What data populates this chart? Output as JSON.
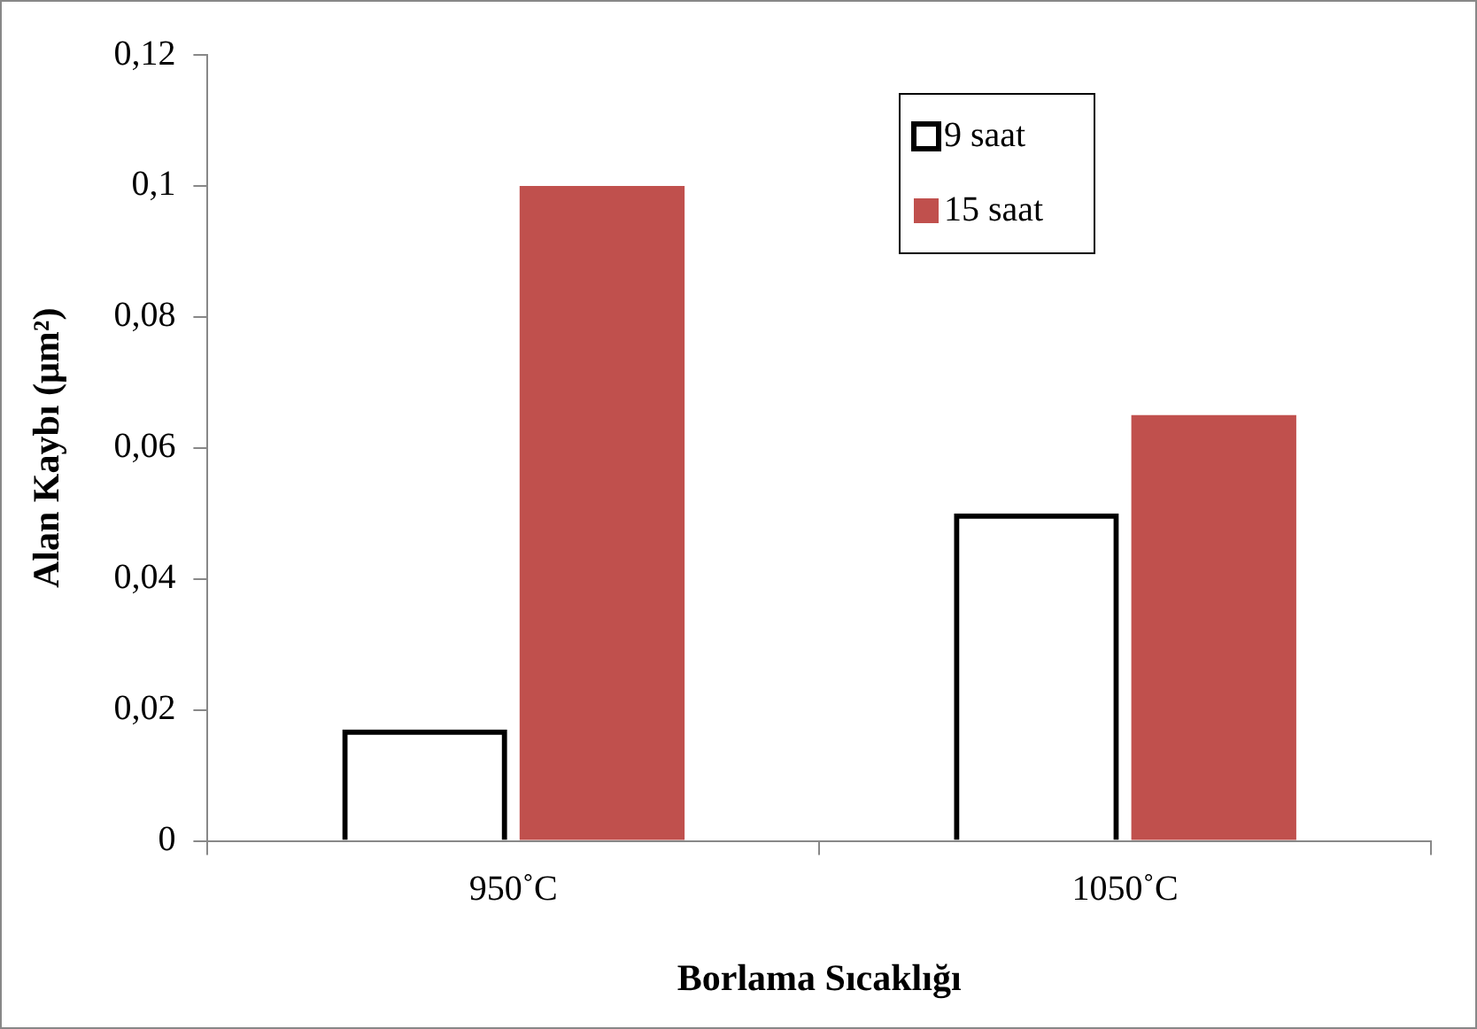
{
  "chart_data": {
    "type": "bar",
    "xlabel": "Borlama Sıcaklığı",
    "ylabel": "Alan Kaybı (μm²)",
    "categories": [
      "950˚C",
      "1050˚C"
    ],
    "series": [
      {
        "name": "9 saat",
        "color": "#000000",
        "values": [
          0.017,
          0.05
        ]
      },
      {
        "name": "15 saat",
        "color": "#c0504d",
        "values": [
          0.1,
          0.065
        ]
      }
    ],
    "ylim": [
      0,
      0.12
    ],
    "yticks": [
      0,
      {
        "value": 0.02,
        "label": "0,02"
      },
      {
        "value": 0.04,
        "label": "0,04"
      },
      {
        "value": 0.06,
        "label": "0,06"
      },
      {
        "value": 0.08,
        "label": "0,08"
      },
      {
        "value": 0.1,
        "label": "0,1"
      },
      {
        "value": 0.12,
        "label": "0,12"
      }
    ],
    "grid": false,
    "legend": "top right"
  }
}
